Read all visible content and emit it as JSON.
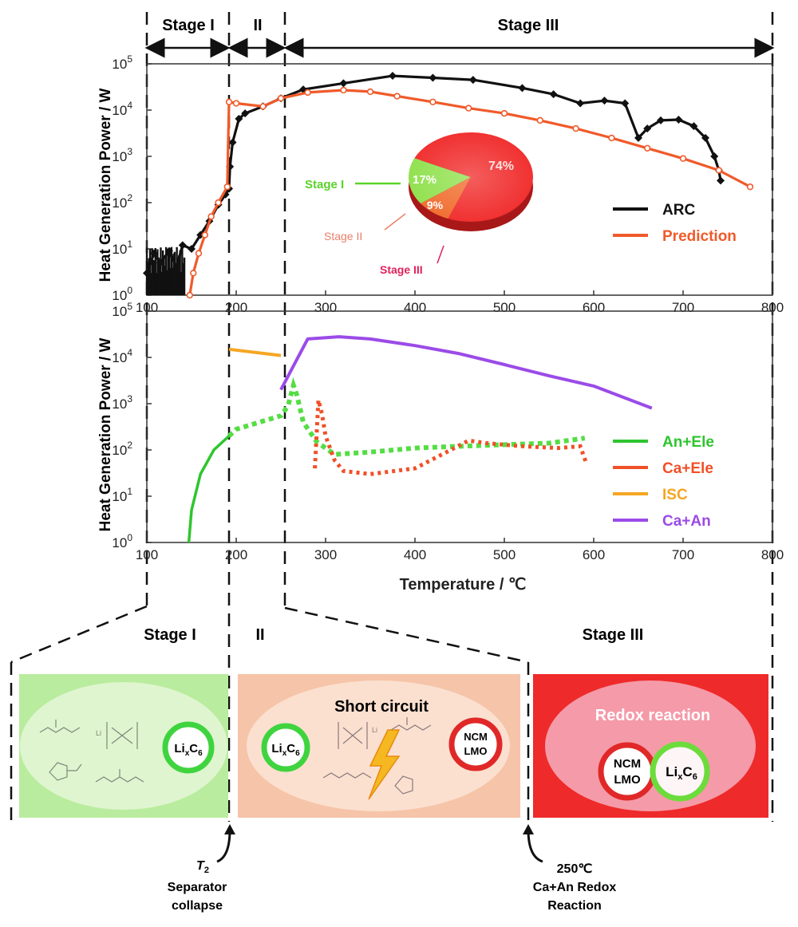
{
  "stages_header": {
    "stage1": "Stage I",
    "stage2": "II",
    "stage3": "Stage III"
  },
  "top_chart": {
    "ylabel": "Heat Generation Power / W",
    "xticks": [
      "100",
      "200",
      "300",
      "400",
      "500",
      "600",
      "700",
      "800"
    ],
    "yticks": [
      "10",
      "10",
      "10",
      "10",
      "10",
      "10"
    ],
    "yexp": [
      "0",
      "1",
      "2",
      "3",
      "4",
      "5"
    ],
    "legend": [
      {
        "name": "ARC",
        "color": "#111111"
      },
      {
        "name": "Prediction",
        "color": "#f05a2a"
      }
    ]
  },
  "pie": {
    "slices": [
      {
        "label": "Stage I",
        "value": 17,
        "pct": "17%",
        "color": "#8ee04a"
      },
      {
        "label": "Stage II",
        "value": 9,
        "pct": "9%",
        "color": "#f06a2a"
      },
      {
        "label": "Stage III",
        "value": 74,
        "pct": "74%",
        "color": "#f02828"
      }
    ],
    "label_colors": {
      "stage1": "#5ad22a",
      "stage2": "#e8806a",
      "stage3": "#e0205a"
    }
  },
  "bottom_chart": {
    "ylabel": "Heat Generation Power  / W",
    "xlabel": "Temperature /  ℃",
    "xticks": [
      "100",
      "200",
      "300",
      "400",
      "500",
      "600",
      "700",
      "800"
    ],
    "yticks": [
      "10",
      "10",
      "10",
      "10",
      "10",
      "10"
    ],
    "yexp": [
      "0",
      "1",
      "2",
      "3",
      "4",
      "5"
    ],
    "legend": [
      {
        "name": "An+Ele",
        "color": "#2ec52e"
      },
      {
        "name": "Ca+Ele",
        "color": "#f05028"
      },
      {
        "name": "ISC",
        "color": "#f5a623"
      },
      {
        "name": "Ca+An",
        "color": "#9b4be8"
      }
    ]
  },
  "chart_data": [
    {
      "type": "line",
      "title": "",
      "xlabel": "",
      "ylabel": "Heat Generation Power / W",
      "xlim": [
        100,
        800
      ],
      "ylim": [
        1,
        100000
      ],
      "yscale": "log",
      "legend_position": "right",
      "series": [
        {
          "name": "ARC",
          "color": "#111111",
          "marker": "diamond",
          "points": [
            [
              100,
              3
            ],
            [
              108,
              8
            ],
            [
              115,
              5
            ],
            [
              125,
              9
            ],
            [
              133,
              4
            ],
            [
              140,
              12
            ],
            [
              150,
              10
            ],
            [
              160,
              20
            ],
            [
              170,
              40
            ],
            [
              180,
              90
            ],
            [
              188,
              150
            ],
            [
              192,
              200
            ],
            [
              193,
              600
            ],
            [
              196,
              2000
            ],
            [
              203,
              6500
            ],
            [
              210,
              8500
            ],
            [
              230,
              12000
            ],
            [
              250,
              18000
            ],
            [
              275,
              28000
            ],
            [
              320,
              38000
            ],
            [
              375,
              55000
            ],
            [
              420,
              50000
            ],
            [
              465,
              45000
            ],
            [
              520,
              30000
            ],
            [
              555,
              22000
            ],
            [
              585,
              14000
            ],
            [
              612,
              16000
            ],
            [
              635,
              14000
            ],
            [
              650,
              2500
            ],
            [
              660,
              4000
            ],
            [
              675,
              6000
            ],
            [
              695,
              6200
            ],
            [
              712,
              4500
            ],
            [
              725,
              2500
            ],
            [
              735,
              1000
            ],
            [
              740,
              500
            ],
            [
              742,
              300
            ]
          ]
        },
        {
          "name": "Prediction",
          "color": "#f05a2a",
          "marker": "circle",
          "points": [
            [
              148,
              1
            ],
            [
              152,
              3
            ],
            [
              158,
              8
            ],
            [
              165,
              20
            ],
            [
              172,
              50
            ],
            [
              180,
              100
            ],
            [
              190,
              220
            ],
            [
              192,
              15000
            ],
            [
              200,
              14000
            ],
            [
              230,
              12000
            ],
            [
              250,
              18000
            ],
            [
              280,
              24000
            ],
            [
              320,
              27000
            ],
            [
              350,
              25000
            ],
            [
              380,
              20000
            ],
            [
              420,
              15000
            ],
            [
              460,
              11000
            ],
            [
              500,
              8500
            ],
            [
              540,
              6000
            ],
            [
              580,
              4000
            ],
            [
              620,
              2500
            ],
            [
              660,
              1500
            ],
            [
              700,
              900
            ],
            [
              740,
              500
            ],
            [
              775,
              220
            ]
          ]
        }
      ]
    },
    {
      "type": "pie",
      "labels": [
        "Stage I",
        "Stage II",
        "Stage III"
      ],
      "values": [
        17,
        9,
        74
      ]
    },
    {
      "type": "line",
      "title": "",
      "xlabel": "Temperature /  ℃",
      "ylabel": "Heat Generation Power  / W",
      "xlim": [
        100,
        800
      ],
      "ylim": [
        1,
        100000
      ],
      "yscale": "log",
      "legend_position": "right",
      "series": [
        {
          "name": "An+Ele",
          "color": "#2ec52e",
          "points": [
            [
              147,
              1
            ],
            [
              150,
              5
            ],
            [
              160,
              30
            ],
            [
              175,
              100
            ],
            [
              192,
              200
            ],
            [
              200,
              280
            ],
            [
              230,
              420
            ],
            [
              250,
              550
            ],
            [
              258,
              900
            ],
            [
              264,
              2500
            ],
            [
              268,
              1500
            ],
            [
              275,
              400
            ],
            [
              290,
              150
            ],
            [
              310,
              80
            ],
            [
              350,
              90
            ],
            [
              400,
              110
            ],
            [
              450,
              120
            ],
            [
              500,
              130
            ],
            [
              550,
              140
            ],
            [
              590,
              180
            ]
          ]
        },
        {
          "name": "Ca+Ele",
          "color": "#f05028",
          "points": [
            [
              288,
              40
            ],
            [
              292,
              1200
            ],
            [
              296,
              600
            ],
            [
              300,
              200
            ],
            [
              310,
              60
            ],
            [
              320,
              35
            ],
            [
              350,
              30
            ],
            [
              400,
              40
            ],
            [
              440,
              100
            ],
            [
              460,
              160
            ],
            [
              480,
              140
            ],
            [
              520,
              120
            ],
            [
              560,
              110
            ],
            [
              585,
              120
            ],
            [
              592,
              50
            ]
          ]
        },
        {
          "name": "ISC",
          "color": "#f5a623",
          "points": [
            [
              192,
              15000
            ],
            [
              250,
              11000
            ]
          ]
        },
        {
          "name": "Ca+An",
          "color": "#9b4be8",
          "points": [
            [
              250,
              2000
            ],
            [
              280,
              25000
            ],
            [
              315,
              28000
            ],
            [
              350,
              25000
            ],
            [
              400,
              18000
            ],
            [
              450,
              12000
            ],
            [
              500,
              7000
            ],
            [
              550,
              4000
            ],
            [
              600,
              2400
            ],
            [
              665,
              800
            ]
          ]
        }
      ]
    }
  ],
  "schematic": {
    "stage1_label": "Stage I",
    "stage2_label": "II",
    "stage3_label": "Stage III",
    "panel2_title": "Short circuit",
    "panel3_title": "Redox reaction",
    "lixc6_main": "Li",
    "lixc6_x": "x",
    "lixc6_c": "C",
    "lixc6_6": "6",
    "ncm": "NCM",
    "lmo": "LMO",
    "molecule_li": "Li"
  },
  "annotations": {
    "t2_symbol": "T",
    "t2_sub": "2",
    "separator_line1": "Separator",
    "separator_line2": "collapse",
    "redox_line1": "250℃",
    "redox_line2": "Ca+An Redox",
    "redox_line3": "Reaction"
  }
}
